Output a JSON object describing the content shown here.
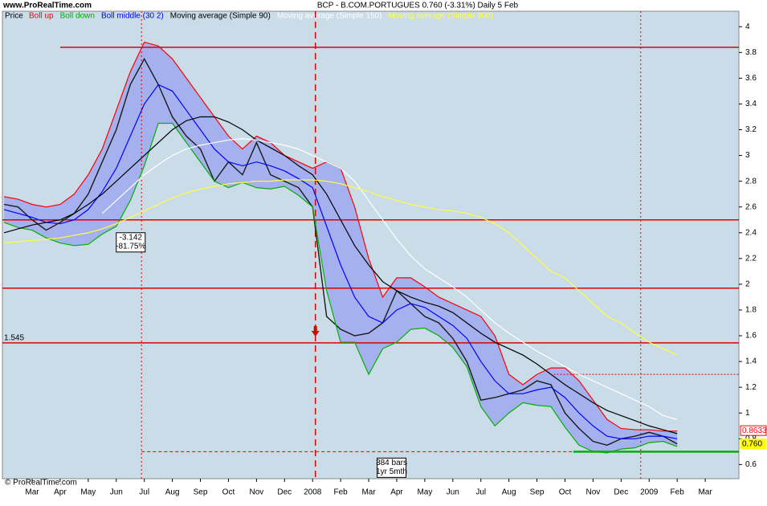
{
  "chart_data": {
    "type": "line",
    "source": "www.ProRealTime.com",
    "title": "BCP - B.COM.PORTUGUES   0.760 (-3.31%)   Daily  5 Feb",
    "copyright": "© ProRealTime.com",
    "price_label": "Price",
    "x": [
      -1,
      -0.5,
      0,
      0.5,
      1,
      1.5,
      2,
      2.5,
      3,
      3.5,
      4,
      4.5,
      5,
      5.5,
      6,
      6.5,
      7,
      7.5,
      8,
      8.5,
      9,
      9.5,
      10,
      10.5,
      11,
      11.5,
      12,
      12.5,
      13,
      13.5,
      14,
      14.5,
      15,
      15.5,
      16,
      16.5,
      17,
      17.5,
      18,
      18.5,
      19,
      19.5,
      20,
      20.5,
      21,
      21.5,
      22,
      22.5,
      23
    ],
    "series": [
      {
        "name": "Price",
        "color": "#1a1a1a",
        "values": [
          2.62,
          2.6,
          2.5,
          2.42,
          2.48,
          2.55,
          2.7,
          2.95,
          3.2,
          3.55,
          3.75,
          3.55,
          3.3,
          3.15,
          3.05,
          2.8,
          2.95,
          2.85,
          3.1,
          2.85,
          2.8,
          2.75,
          2.6,
          1.75,
          1.65,
          1.6,
          1.62,
          1.7,
          1.95,
          1.85,
          1.75,
          1.7,
          1.58,
          1.4,
          1.1,
          1.12,
          1.15,
          1.18,
          1.25,
          1.22,
          1.0,
          0.88,
          0.78,
          0.75,
          0.8,
          0.82,
          0.85,
          0.82,
          0.76
        ]
      },
      {
        "name": "Boll up",
        "color": "#ff0000",
        "values": [
          2.68,
          2.66,
          2.62,
          2.6,
          2.62,
          2.7,
          2.85,
          3.05,
          3.35,
          3.65,
          3.88,
          3.85,
          3.75,
          3.6,
          3.45,
          3.3,
          3.15,
          3.05,
          3.15,
          3.1,
          3.0,
          2.95,
          2.9,
          2.95,
          2.9,
          2.6,
          2.2,
          1.9,
          2.05,
          2.05,
          1.98,
          1.9,
          1.85,
          1.8,
          1.75,
          1.6,
          1.3,
          1.22,
          1.3,
          1.35,
          1.35,
          1.25,
          1.1,
          0.95,
          0.88,
          0.87,
          0.87,
          0.86,
          0.86
        ]
      },
      {
        "name": "Boll down",
        "color": "#00b000",
        "values": [
          2.48,
          2.44,
          2.42,
          2.36,
          2.32,
          2.3,
          2.31,
          2.39,
          2.45,
          2.65,
          2.92,
          3.25,
          3.25,
          3.1,
          2.95,
          2.8,
          2.75,
          2.79,
          2.75,
          2.74,
          2.76,
          2.69,
          2.6,
          1.95,
          1.55,
          1.55,
          1.3,
          1.5,
          1.55,
          1.65,
          1.66,
          1.6,
          1.51,
          1.36,
          1.05,
          0.9,
          1.0,
          1.08,
          1.06,
          1.05,
          0.89,
          0.75,
          0.7,
          0.69,
          0.72,
          0.73,
          0.77,
          0.78,
          0.74
        ]
      },
      {
        "name": "Boll middle (30 2)",
        "color": "#0000ff",
        "values": [
          2.58,
          2.55,
          2.52,
          2.48,
          2.47,
          2.5,
          2.58,
          2.72,
          2.9,
          3.15,
          3.4,
          3.55,
          3.5,
          3.35,
          3.2,
          3.05,
          2.95,
          2.92,
          2.95,
          2.92,
          2.88,
          2.82,
          2.75,
          2.45,
          2.15,
          1.9,
          1.75,
          1.7,
          1.8,
          1.85,
          1.82,
          1.75,
          1.68,
          1.58,
          1.4,
          1.25,
          1.15,
          1.15,
          1.18,
          1.2,
          1.12,
          1.0,
          0.9,
          0.82,
          0.8,
          0.8,
          0.82,
          0.82,
          0.8
        ]
      },
      {
        "name": "Moving average (Simple 90)",
        "color": "#000000",
        "values": [
          2.4,
          2.43,
          2.46,
          2.48,
          2.5,
          2.55,
          2.62,
          2.7,
          2.8,
          2.9,
          3.0,
          3.1,
          3.2,
          3.27,
          3.3,
          3.3,
          3.26,
          3.2,
          3.12,
          3.06,
          3.0,
          2.92,
          2.85,
          2.7,
          2.5,
          2.3,
          2.15,
          2.02,
          1.95,
          1.9,
          1.86,
          1.83,
          1.78,
          1.7,
          1.62,
          1.55,
          1.5,
          1.45,
          1.38,
          1.3,
          1.22,
          1.15,
          1.08,
          1.02,
          0.98,
          0.94,
          0.9,
          0.87,
          0.84
        ]
      },
      {
        "name": "Moving average (Simple 150)",
        "color": "#ffffff",
        "values": [
          null,
          null,
          null,
          null,
          null,
          null,
          null,
          2.55,
          2.65,
          2.75,
          2.85,
          2.93,
          3.0,
          3.05,
          3.08,
          3.1,
          3.12,
          3.13,
          3.12,
          3.1,
          3.08,
          3.05,
          3.0,
          2.95,
          2.9,
          2.8,
          2.65,
          2.5,
          2.35,
          2.22,
          2.12,
          2.05,
          1.98,
          1.9,
          1.8,
          1.7,
          1.62,
          1.55,
          1.48,
          1.42,
          1.36,
          1.3,
          1.25,
          1.2,
          1.15,
          1.1,
          1.05,
          0.98,
          0.95
        ]
      },
      {
        "name": "Moving average (Simple 300)",
        "color": "#ffff40",
        "values": [
          2.32,
          2.33,
          2.34,
          2.35,
          2.36,
          2.38,
          2.4,
          2.43,
          2.47,
          2.52,
          2.57,
          2.62,
          2.67,
          2.71,
          2.74,
          2.76,
          2.78,
          2.79,
          2.8,
          2.8,
          2.81,
          2.81,
          2.81,
          2.8,
          2.78,
          2.75,
          2.72,
          2.68,
          2.65,
          2.62,
          2.6,
          2.58,
          2.57,
          2.55,
          2.52,
          2.47,
          2.4,
          2.3,
          2.2,
          2.1,
          2.05,
          1.95,
          1.85,
          1.75,
          1.7,
          1.62,
          1.55,
          1.5,
          1.45
        ]
      }
    ],
    "band_color": "#9fa9ee",
    "xlim": [
      -1.06,
      25.2
    ],
    "xticks": [
      {
        "value": 0,
        "label": "Mar"
      },
      {
        "value": 1,
        "label": "Apr"
      },
      {
        "value": 2,
        "label": "May"
      },
      {
        "value": 3,
        "label": "Jun"
      },
      {
        "value": 4,
        "label": "Jul"
      },
      {
        "value": 5,
        "label": "Aug"
      },
      {
        "value": 6,
        "label": "Sep"
      },
      {
        "value": 7,
        "label": "Oct"
      },
      {
        "value": 8,
        "label": "Nov"
      },
      {
        "value": 9,
        "label": "Dec"
      },
      {
        "value": 10,
        "label": "2008"
      },
      {
        "value": 11,
        "label": "Feb"
      },
      {
        "value": 12,
        "label": "Mar"
      },
      {
        "value": 13,
        "label": "Apr"
      },
      {
        "value": 14,
        "label": "May"
      },
      {
        "value": 15,
        "label": "Jun"
      },
      {
        "value": 16,
        "label": "Jul"
      },
      {
        "value": 17,
        "label": "Aug"
      },
      {
        "value": 18,
        "label": "Sep"
      },
      {
        "value": 19,
        "label": "Oct"
      },
      {
        "value": 20,
        "label": "Nov"
      },
      {
        "value": 21,
        "label": "Dec"
      },
      {
        "value": 22,
        "label": "2009"
      },
      {
        "value": 23,
        "label": "Feb"
      },
      {
        "value": 24,
        "label": "Mar"
      }
    ],
    "ylim": [
      0.49,
      4.12
    ],
    "yticks": [
      0.6,
      0.8,
      1,
      1.2,
      1.4,
      1.6,
      1.8,
      2,
      2.2,
      2.4,
      2.6,
      2.8,
      3,
      3.2,
      3.4,
      3.6,
      3.8,
      4
    ],
    "hlines": [
      3.84,
      2.5,
      1.97
    ],
    "marked_level": 1.545,
    "dashed_level": 1.3,
    "support_level": 0.7,
    "vlines": [
      3.9,
      10.1,
      21.7
    ],
    "arrow_at": [
      10.1,
      1.6
    ],
    "box1": {
      "lines": [
        "-3.142",
        "-81.75%"
      ],
      "at": [
        3.0,
        2.4
      ]
    },
    "box2": {
      "lines": [
        "384 bars",
        "1yr 5mth"
      ],
      "at": [
        12.3,
        0.65
      ]
    },
    "right_labels": [
      {
        "value": 0.8633,
        "label": "0.8633",
        "color": "#ff0000"
      },
      {
        "value": 0.76,
        "label": "0.760",
        "color": "#ffff00"
      }
    ]
  }
}
